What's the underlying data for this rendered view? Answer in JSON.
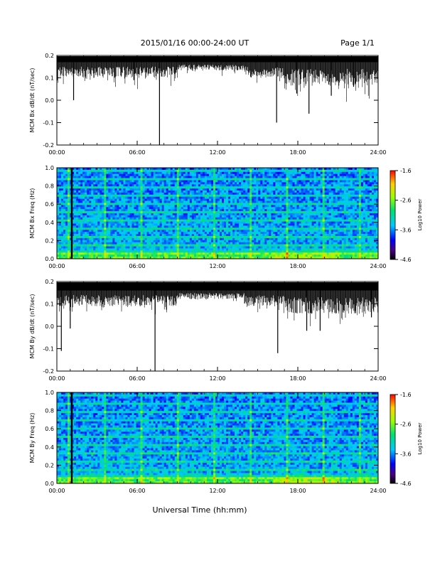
{
  "header": {
    "title": "2015/01/16  00:00-24:00 UT",
    "page": "Page 1/1"
  },
  "xlabel": "Universal Time (hh:mm)",
  "chart_data": [
    {
      "type": "line",
      "ylabel": "MCM Bx dB/dt (nT/sec)",
      "ylim": [
        -0.2,
        0.2
      ],
      "yticks": [
        "0.2",
        "0.1",
        "0.0",
        "-0.1",
        "-0.2"
      ],
      "xticks": [
        "00:00",
        "06:00",
        "12:00",
        "18:00",
        "24:00"
      ],
      "baseline": 0.17,
      "spikes": [
        {
          "time": "01:15",
          "value": 0.0
        },
        {
          "time": "05:45",
          "value": 0.09
        },
        {
          "time": "07:40",
          "value": -0.21
        },
        {
          "time": "16:25",
          "value": -0.1
        },
        {
          "time": "17:55",
          "value": 0.03
        },
        {
          "time": "18:50",
          "value": -0.06
        },
        {
          "time": "20:30",
          "value": 0.02
        },
        {
          "time": "22:10",
          "value": 0.06
        }
      ]
    },
    {
      "type": "heatmap",
      "ylabel": "MCM Bx Freq (Hz)",
      "ylim": [
        0.0,
        1.0
      ],
      "yticks": [
        "1.0",
        "0.8",
        "0.6",
        "0.4",
        "0.2",
        "0.0"
      ],
      "xticks": [
        "00:00",
        "06:00",
        "12:00",
        "18:00",
        "24:00"
      ],
      "colorbar": {
        "label": "Log10 Power",
        "ticks": [
          "-1.6",
          "-2.6",
          "-3.6",
          "-4.6"
        ],
        "range": [
          -4.6,
          -1.6
        ]
      }
    },
    {
      "type": "line",
      "ylabel": "MCM By dB/dt (nT/sec)",
      "ylim": [
        -0.2,
        0.2
      ],
      "yticks": [
        "0.2",
        "0.1",
        "0.0",
        "-0.1",
        "-0.2"
      ],
      "xticks": [
        "00:00",
        "06:00",
        "12:00",
        "18:00",
        "24:00"
      ],
      "baseline": 0.16,
      "spikes": [
        {
          "time": "00:20",
          "value": -0.11
        },
        {
          "time": "01:00",
          "value": -0.01
        },
        {
          "time": "07:20",
          "value": -0.2
        },
        {
          "time": "16:30",
          "value": -0.12
        },
        {
          "time": "18:40",
          "value": -0.02
        },
        {
          "time": "19:40",
          "value": -0.02
        },
        {
          "time": "23:30",
          "value": 0.04
        }
      ]
    },
    {
      "type": "heatmap",
      "ylabel": "MCM By Freq (Hz)",
      "ylim": [
        0.0,
        1.0
      ],
      "yticks": [
        "1.0",
        "0.8",
        "0.6",
        "0.4",
        "0.2",
        "0.0"
      ],
      "xticks": [
        "00:00",
        "06:00",
        "12:00",
        "18:00",
        "24:00"
      ],
      "colorbar": {
        "label": "Log10 Power",
        "ticks": [
          "-1.6",
          "-2.6",
          "-3.6",
          "-4.6"
        ],
        "range": [
          -4.6,
          -1.6
        ]
      }
    }
  ]
}
